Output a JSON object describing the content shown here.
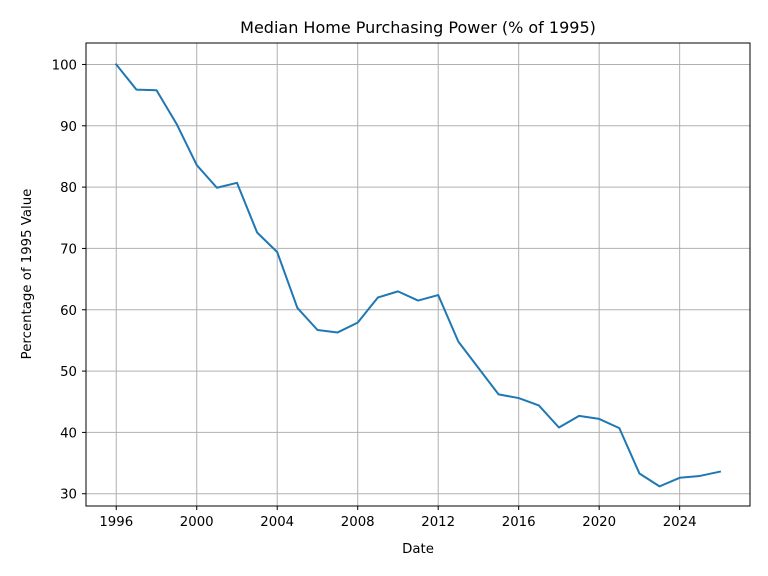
{
  "chart_data": {
    "type": "line",
    "title": "Median Home Purchasing Power (% of 1995)",
    "xlabel": "Date",
    "ylabel": "Percentage of 1995 Value",
    "xlim": [
      "1994-07-01",
      "2027-07-01"
    ],
    "ylim": [
      28,
      103.5
    ],
    "grid": true,
    "x_ticks": [
      "1996",
      "2000",
      "2004",
      "2008",
      "2012",
      "2016",
      "2020",
      "2024"
    ],
    "y_ticks": [
      30,
      40,
      50,
      60,
      70,
      80,
      90,
      100
    ],
    "series": [
      {
        "color": "#1f77b4",
        "x": [
          "1996-01-01",
          "1997-01-01",
          "1998-01-01",
          "1999-01-01",
          "2000-01-01",
          "2001-01-01",
          "2002-01-01",
          "2003-01-01",
          "2004-01-01",
          "2005-01-01",
          "2006-01-01",
          "2007-01-01",
          "2008-01-01",
          "2009-01-01",
          "2010-01-01",
          "2011-01-01",
          "2012-01-01",
          "2013-01-01",
          "2014-01-01",
          "2015-01-01",
          "2016-01-01",
          "2017-01-01",
          "2018-01-01",
          "2019-01-01",
          "2020-01-01",
          "2021-01-01",
          "2022-01-01",
          "2023-01-01",
          "2024-01-01",
          "2025-01-01",
          "2026-01-01"
        ],
        "y": [
          100,
          95.9,
          95.8,
          90.3,
          83.6,
          79.9,
          80.7,
          72.6,
          69.4,
          60.3,
          56.7,
          56.3,
          57.9,
          62.0,
          63.0,
          61.5,
          62.4,
          54.8,
          50.5,
          46.2,
          45.6,
          44.4,
          40.8,
          42.7,
          42.2,
          40.7,
          33.3,
          31.2,
          32.6,
          32.9,
          33.6
        ]
      }
    ]
  }
}
